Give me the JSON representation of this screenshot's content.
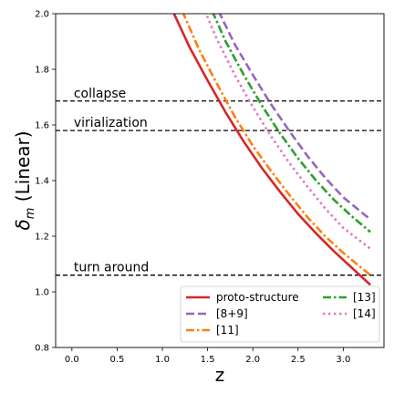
{
  "chart_data": {
    "type": "line",
    "xlabel": "z",
    "ylabel_main": "δ",
    "ylabel_sub": "m",
    "ylabel_rest": " (Linear)",
    "xlim": [
      -0.18,
      3.45
    ],
    "ylim": [
      0.8,
      2.0
    ],
    "xticks": [
      0.0,
      0.5,
      1.0,
      1.5,
      2.0,
      2.5,
      3.0
    ],
    "xtick_labels": [
      "0.0",
      "0.5",
      "1.0",
      "1.5",
      "2.0",
      "2.5",
      "3.0"
    ],
    "yticks": [
      0.8,
      1.0,
      1.2,
      1.4,
      1.6,
      1.8,
      2.0
    ],
    "ytick_labels": [
      "0.8",
      "1.0",
      "1.2",
      "1.4",
      "1.6",
      "1.8",
      "2.0"
    ],
    "hlines": [
      {
        "y": 1.686,
        "label": "collapse"
      },
      {
        "y": 1.58,
        "label": "virialization"
      },
      {
        "y": 1.06,
        "label": "turn around"
      }
    ],
    "series": [
      {
        "name": "proto-structure",
        "color": "#d62728",
        "dash": "solid",
        "x": [
          1.1,
          1.3,
          1.5,
          1.7,
          1.9,
          2.1,
          2.3,
          2.5,
          2.7,
          2.9,
          3.1,
          3.3
        ],
        "y": [
          2.02,
          1.88,
          1.76,
          1.645,
          1.54,
          1.445,
          1.36,
          1.28,
          1.21,
          1.145,
          1.085,
          1.025
        ]
      },
      {
        "name": "[8+9]",
        "color": "#9467bd",
        "dash": "dashed",
        "x": [
          1.62,
          1.8,
          2.0,
          2.2,
          2.4,
          2.6,
          2.8,
          3.0,
          3.3
        ],
        "y": [
          2.01,
          1.89,
          1.78,
          1.675,
          1.58,
          1.49,
          1.41,
          1.34,
          1.26
        ]
      },
      {
        "name": "[11]",
        "color": "#ff7f0e",
        "dash": "dashdot",
        "x": [
          1.22,
          1.4,
          1.6,
          1.8,
          2.0,
          2.2,
          2.4,
          2.6,
          2.8,
          3.0,
          3.3
        ],
        "y": [
          2.01,
          1.875,
          1.75,
          1.63,
          1.525,
          1.435,
          1.35,
          1.27,
          1.2,
          1.14,
          1.06
        ]
      },
      {
        "name": "[13]",
        "color": "#2ca02c",
        "dash": "dashdot",
        "x": [
          1.55,
          1.7,
          1.9,
          2.1,
          2.3,
          2.5,
          2.7,
          2.9,
          3.1,
          3.3
        ],
        "y": [
          2.01,
          1.9,
          1.78,
          1.67,
          1.57,
          1.48,
          1.4,
          1.33,
          1.27,
          1.215
        ]
      },
      {
        "name": "[14]",
        "color": "#e377c2",
        "dash": "dotted",
        "x": [
          1.47,
          1.6,
          1.8,
          2.0,
          2.2,
          2.4,
          2.6,
          2.8,
          3.0,
          3.3
        ],
        "y": [
          2.01,
          1.91,
          1.78,
          1.665,
          1.56,
          1.465,
          1.38,
          1.3,
          1.23,
          1.155
        ]
      }
    ],
    "legend": {
      "placement": "lower-right",
      "columns": [
        [
          "proto-structure",
          "[8+9]",
          "[11]"
        ],
        [
          "[13]",
          "[14]"
        ]
      ]
    }
  }
}
